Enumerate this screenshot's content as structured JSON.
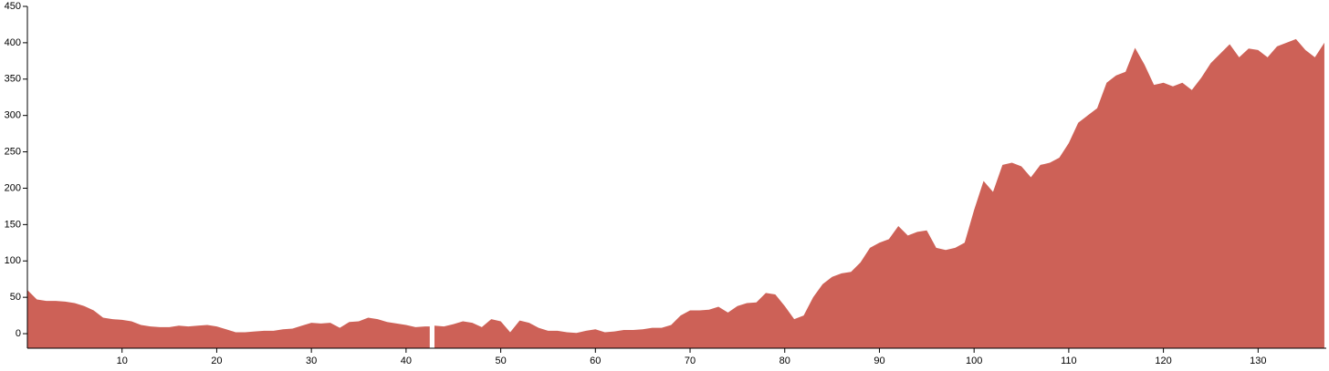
{
  "chart_data": {
    "type": "area",
    "color": "#cd6157",
    "x": [
      0,
      1,
      2,
      3,
      4,
      5,
      6,
      7,
      8,
      9,
      10,
      11,
      12,
      13,
      14,
      15,
      16,
      17,
      18,
      19,
      20,
      21,
      22,
      23,
      24,
      25,
      26,
      27,
      28,
      29,
      30,
      31,
      32,
      33,
      34,
      35,
      36,
      37,
      38,
      39,
      40,
      41,
      42,
      42.5,
      42.7,
      43,
      44,
      45,
      46,
      47,
      48,
      49,
      50,
      51,
      52,
      53,
      54,
      55,
      56,
      57,
      58,
      59,
      60,
      61,
      62,
      63,
      64,
      65,
      66,
      67,
      68,
      69,
      70,
      71,
      72,
      73,
      74,
      75,
      76,
      77,
      78,
      79,
      80,
      81,
      82,
      83,
      84,
      85,
      86,
      87,
      88,
      89,
      90,
      91,
      92,
      93,
      94,
      95,
      96,
      97,
      98,
      99,
      100,
      101,
      102,
      103,
      104,
      105,
      106,
      107,
      108,
      109,
      110,
      111,
      112,
      113,
      114,
      115,
      116,
      117,
      118,
      119,
      120,
      121,
      122,
      123,
      124,
      125,
      126,
      127,
      128,
      129,
      130,
      131,
      132,
      133,
      134,
      135,
      136,
      137
    ],
    "values": [
      60,
      47,
      45,
      45,
      44,
      42,
      38,
      32,
      22,
      20,
      19,
      17,
      12,
      10,
      9,
      9,
      11,
      10,
      11,
      12,
      10,
      6,
      2,
      2,
      3,
      4,
      4,
      6,
      7,
      11,
      15,
      14,
      15,
      8,
      16,
      17,
      22,
      20,
      16,
      14,
      12,
      9,
      10,
      10,
      null,
      11,
      10,
      13,
      17,
      15,
      9,
      20,
      17,
      2,
      18,
      15,
      8,
      4,
      4,
      2,
      1,
      4,
      6,
      2,
      3,
      5,
      5,
      6,
      8,
      8,
      12,
      25,
      32,
      32,
      33,
      37,
      29,
      38,
      42,
      43,
      56,
      54,
      38,
      20,
      25,
      50,
      68,
      78,
      83,
      85,
      98,
      118,
      125,
      130,
      148,
      135,
      140,
      142,
      118,
      115,
      118,
      125,
      170,
      210,
      195,
      232,
      235,
      230,
      215,
      232,
      235,
      242,
      262,
      290,
      300,
      310,
      345,
      355,
      360,
      393,
      370,
      342,
      345,
      340,
      345,
      335,
      352,
      372,
      385,
      398,
      380,
      392,
      390,
      380,
      395,
      400,
      405,
      390,
      380,
      400
    ],
    "xlim": [
      0,
      137.2
    ],
    "ylim": [
      -20,
      450
    ],
    "xticks": [
      10,
      20,
      30,
      40,
      50,
      60,
      70,
      80,
      90,
      100,
      110,
      120,
      130
    ],
    "yticks": [
      0,
      50,
      100,
      150,
      200,
      250,
      300,
      350,
      400,
      450
    ]
  }
}
